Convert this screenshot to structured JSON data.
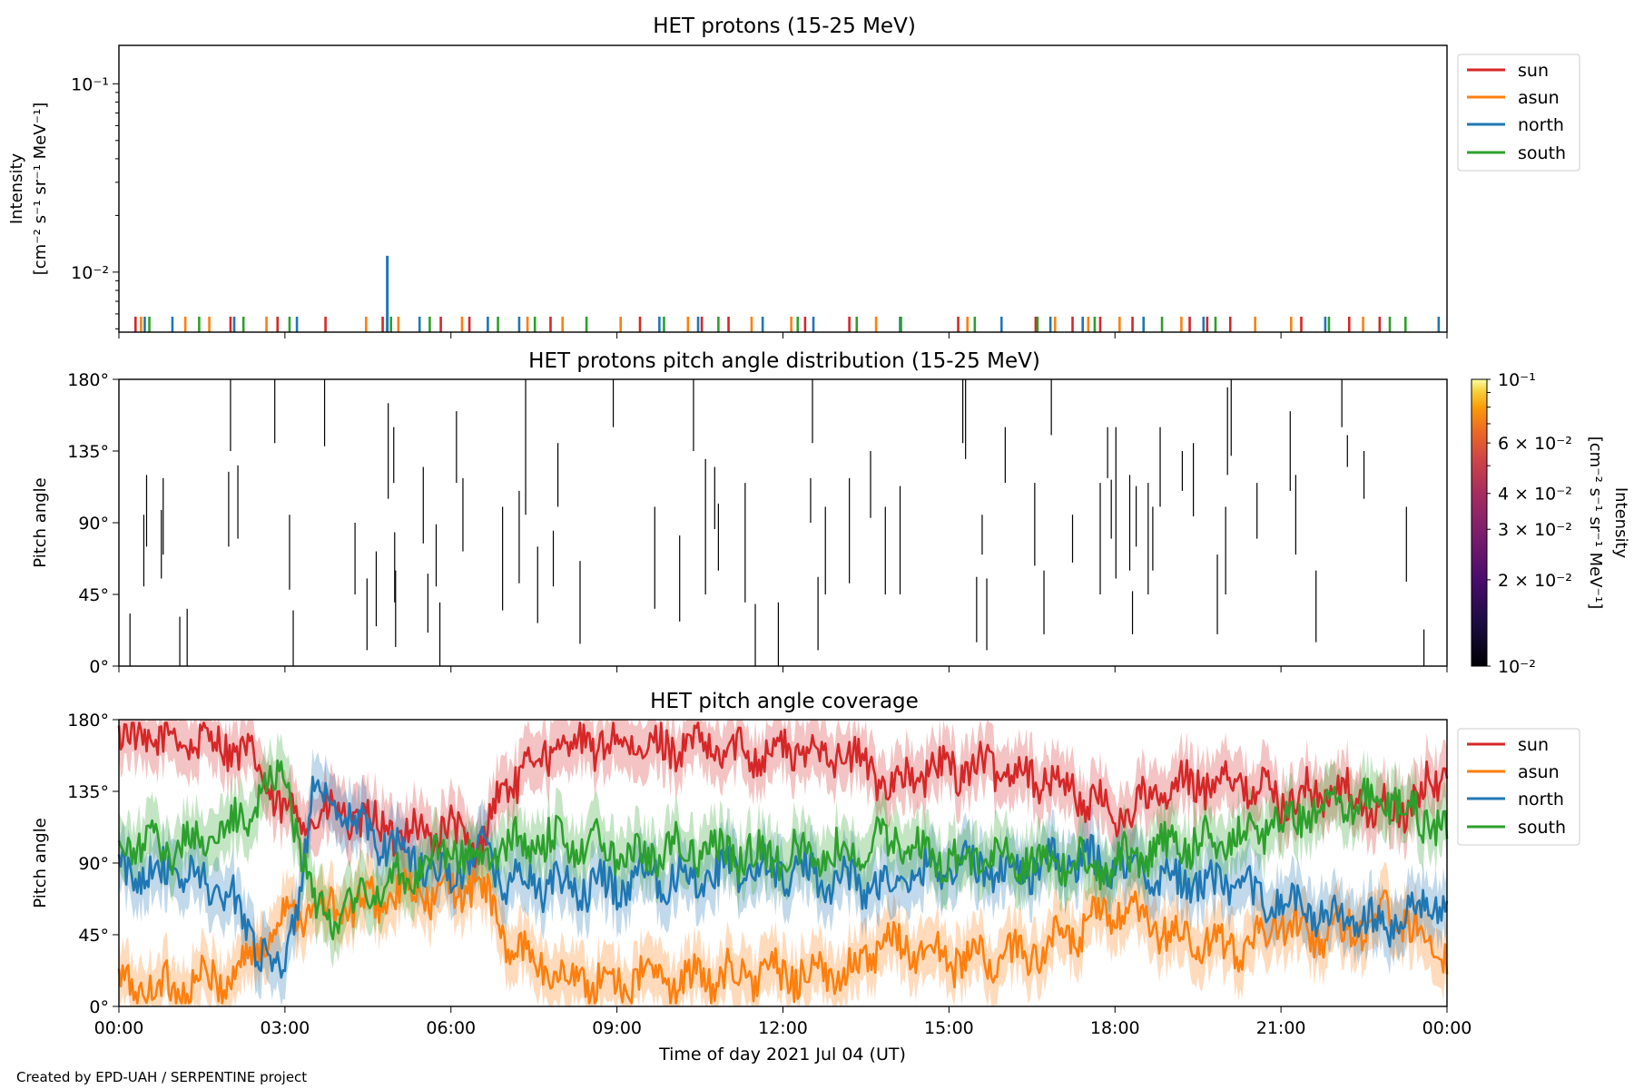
{
  "credit": "Created by EPD-UAH / SERPENTINE project",
  "colors": {
    "sun": "#d62728",
    "asun": "#ff7f0e",
    "north": "#1f77b4",
    "south": "#2ca02c",
    "marks": "#000000"
  },
  "chart_data": [
    {
      "type": "line",
      "title": "HET protons (15-25 MeV)",
      "ylabel_line1": "Intensity",
      "ylabel_line2": "[cm⁻² s⁻¹ sr⁻¹ MeV⁻¹]",
      "yscale": "log",
      "ylim": [
        0.0048,
        0.16
      ],
      "yticks": [
        {
          "value": 0.01,
          "label": "10⁻²"
        },
        {
          "value": 0.1,
          "label": "10⁻¹"
        }
      ],
      "legend": [
        "sun",
        "asun",
        "north",
        "south"
      ],
      "legend_position": "outside-right",
      "spike_level": 0.0058,
      "series": [
        {
          "name": "sun",
          "times": [
            "00:18",
            "02:01",
            "02:52",
            "03:44",
            "04:46",
            "05:49",
            "06:20",
            "07:48",
            "09:25",
            "10:32",
            "11:01",
            "12:24",
            "13:12",
            "15:10",
            "16:34",
            "17:14",
            "17:44",
            "18:19",
            "19:21",
            "19:40",
            "20:05",
            "21:22",
            "22:14",
            "22:47"
          ]
        },
        {
          "name": "asun",
          "times": [
            "00:24",
            "01:12",
            "01:38",
            "02:40",
            "04:28",
            "05:03",
            "06:12",
            "07:23",
            "08:01",
            "09:04",
            "10:17",
            "11:26",
            "12:09",
            "13:41",
            "15:20",
            "16:55",
            "17:31",
            "18:05",
            "19:12",
            "20:32",
            "21:11",
            "22:29"
          ]
        },
        {
          "name": "north",
          "times": [
            "00:28",
            "00:58",
            "02:05",
            "03:13",
            "04:51",
            "05:26",
            "06:40",
            "07:14",
            "09:46",
            "10:28",
            "11:38",
            "12:33",
            "14:07",
            "15:57",
            "16:50",
            "17:25",
            "18:31",
            "19:36",
            "21:48",
            "23:51"
          ]
        },
        {
          "name": "south",
          "times": [
            "00:33",
            "01:27",
            "02:15",
            "03:05",
            "04:55",
            "05:37",
            "06:51",
            "07:31",
            "08:27",
            "09:51",
            "10:50",
            "12:16",
            "13:20",
            "14:08",
            "15:28",
            "16:36",
            "17:38",
            "18:51",
            "19:49",
            "21:52",
            "22:58",
            "23:15"
          ]
        }
      ],
      "peak": {
        "series": "north",
        "time": "04:51",
        "value": 0.0122
      }
    },
    {
      "type": "scatter",
      "title": "HET protons pitch angle distribution (15-25 MeV)",
      "ylabel": "Pitch angle",
      "ylim": [
        0,
        180
      ],
      "yticks": [
        "0°",
        "45°",
        "90°",
        "135°",
        "180°"
      ],
      "colorbar": {
        "label_line1": "Intensity",
        "label_line2": "[cm⁻² s⁻¹ sr⁻¹ MeV⁻¹]",
        "scale": "log",
        "range": [
          0.01,
          0.1
        ],
        "ticks": [
          {
            "value": 0.01,
            "label": "10⁻²"
          },
          {
            "value": 0.02,
            "label": "2 × 10⁻²"
          },
          {
            "value": 0.03,
            "label": "3 × 10⁻²"
          },
          {
            "value": 0.04,
            "label": "4 × 10⁻²"
          },
          {
            "value": 0.06,
            "label": "6 × 10⁻²"
          },
          {
            "value": 0.1,
            "label": "10⁻¹"
          }
        ]
      },
      "segments": [
        [
          "00:12",
          0,
          33
        ],
        [
          "00:27",
          50,
          95
        ],
        [
          "00:30",
          75,
          120
        ],
        [
          "00:46",
          55,
          98
        ],
        [
          "00:48",
          70,
          118
        ],
        [
          "01:06",
          0,
          31
        ],
        [
          "01:14",
          0,
          36
        ],
        [
          "01:59",
          75,
          122
        ],
        [
          "02:01",
          135,
          180
        ],
        [
          "02:09",
          80,
          126
        ],
        [
          "02:49",
          140,
          180
        ],
        [
          "03:05",
          48,
          95
        ],
        [
          "03:09",
          0,
          35
        ],
        [
          "03:43",
          138,
          180
        ],
        [
          "04:16",
          45,
          90
        ],
        [
          "04:29",
          10,
          55
        ],
        [
          "04:39",
          25,
          72
        ],
        [
          "04:52",
          105,
          165
        ],
        [
          "04:58",
          115,
          150
        ],
        [
          "04:59",
          40,
          84
        ],
        [
          "05:00",
          12,
          60
        ],
        [
          "05:30",
          77,
          125
        ],
        [
          "05:35",
          21,
          58
        ],
        [
          "05:44",
          50,
          89
        ],
        [
          "05:48",
          0,
          40
        ],
        [
          "06:06",
          115,
          160
        ],
        [
          "06:13",
          72,
          118
        ],
        [
          "06:56",
          35,
          100
        ],
        [
          "07:14",
          52,
          110
        ],
        [
          "07:21",
          95,
          180
        ],
        [
          "07:34",
          27,
          75
        ],
        [
          "07:51",
          50,
          85
        ],
        [
          "07:56",
          100,
          140
        ],
        [
          "08:20",
          14,
          66
        ],
        [
          "08:56",
          150,
          180
        ],
        [
          "09:41",
          36,
          100
        ],
        [
          "10:08",
          28,
          82
        ],
        [
          "10:23",
          135,
          180
        ],
        [
          "10:36",
          45,
          130
        ],
        [
          "10:46",
          86,
          125
        ],
        [
          "10:50",
          60,
          102
        ],
        [
          "11:19",
          40,
          115
        ],
        [
          "11:30",
          0,
          39
        ],
        [
          "11:55",
          0,
          40
        ],
        [
          "12:30",
          90,
          118
        ],
        [
          "12:32",
          140,
          180
        ],
        [
          "12:38",
          10,
          56
        ],
        [
          "12:46",
          45,
          100
        ],
        [
          "13:12",
          52,
          118
        ],
        [
          "13:35",
          93,
          135
        ],
        [
          "13:51",
          45,
          100
        ],
        [
          "14:07",
          45,
          113
        ],
        [
          "15:15",
          140,
          180
        ],
        [
          "15:18",
          130,
          180
        ],
        [
          "15:30",
          15,
          56
        ],
        [
          "15:36",
          70,
          95
        ],
        [
          "15:41",
          10,
          55
        ],
        [
          "16:01",
          115,
          150
        ],
        [
          "16:33",
          63,
          115
        ],
        [
          "16:43",
          20,
          60
        ],
        [
          "16:51",
          145,
          180
        ],
        [
          "17:14",
          65,
          95
        ],
        [
          "17:44",
          45,
          115
        ],
        [
          "17:52",
          118,
          150
        ],
        [
          "17:56",
          80,
          117
        ],
        [
          "18:01",
          55,
          150
        ],
        [
          "18:16",
          60,
          120
        ],
        [
          "18:19",
          20,
          47
        ],
        [
          "18:23",
          75,
          113
        ],
        [
          "18:36",
          45,
          115
        ],
        [
          "18:41",
          60,
          100
        ],
        [
          "18:49",
          100,
          150
        ],
        [
          "19:13",
          110,
          135
        ],
        [
          "19:25",
          94,
          140
        ],
        [
          "19:51",
          20,
          70
        ],
        [
          "20:00",
          45,
          100
        ],
        [
          "20:02",
          120,
          175
        ],
        [
          "20:06",
          132,
          180
        ],
        [
          "20:34",
          80,
          115
        ],
        [
          "21:10",
          110,
          160
        ],
        [
          "21:16",
          70,
          120
        ],
        [
          "21:38",
          15,
          60
        ],
        [
          "22:06",
          150,
          180
        ],
        [
          "22:12",
          125,
          145
        ],
        [
          "22:30",
          105,
          135
        ],
        [
          "23:16",
          53,
          100
        ],
        [
          "23:35",
          0,
          23
        ]
      ]
    },
    {
      "type": "area",
      "title": "HET pitch angle coverage",
      "ylabel": "Pitch angle",
      "xlabel": "Time of day 2021 Jul 04 (UT)",
      "ylim": [
        0,
        180
      ],
      "yticks": [
        "0°",
        "45°",
        "90°",
        "135°",
        "180°"
      ],
      "xticks": [
        "00:00",
        "03:00",
        "06:00",
        "09:00",
        "12:00",
        "15:00",
        "18:00",
        "21:00",
        "00:00"
      ],
      "legend": [
        "sun",
        "asun",
        "north",
        "south"
      ],
      "legend_position": "outside-right",
      "band_halfwidth_deg": 18,
      "series": [
        {
          "name": "sun",
          "times": [
            "00:00",
            "01:00",
            "02:00",
            "02:30",
            "03:00",
            "03:30",
            "04:00",
            "05:00",
            "06:00",
            "06:30",
            "07:00",
            "08:00",
            "09:00",
            "09:30",
            "10:00",
            "11:00",
            "12:00",
            "13:00",
            "14:00",
            "15:00",
            "16:00",
            "17:00",
            "18:00",
            "19:00",
            "20:00",
            "21:00",
            "22:00",
            "23:00",
            "24:00"
          ],
          "values": [
            168,
            168,
            165,
            150,
            120,
            120,
            120,
            110,
            110,
            100,
            140,
            165,
            165,
            160,
            165,
            160,
            160,
            160,
            140,
            150,
            150,
            140,
            120,
            135,
            145,
            130,
            135,
            120,
            145
          ]
        },
        {
          "name": "asun",
          "times": [
            "00:00",
            "01:00",
            "02:00",
            "02:30",
            "03:00",
            "03:30",
            "04:00",
            "05:00",
            "06:00",
            "06:30",
            "07:00",
            "08:00",
            "09:00",
            "09:30",
            "10:00",
            "11:00",
            "12:00",
            "13:00",
            "14:00",
            "15:00",
            "16:00",
            "17:00",
            "18:00",
            "19:00",
            "20:00",
            "21:00",
            "22:00",
            "23:00",
            "24:00"
          ],
          "values": [
            12,
            12,
            18,
            35,
            60,
            60,
            60,
            70,
            70,
            80,
            40,
            18,
            15,
            20,
            15,
            20,
            20,
            20,
            40,
            30,
            30,
            40,
            60,
            45,
            35,
            50,
            45,
            60,
            35
          ]
        },
        {
          "name": "north",
          "times": [
            "00:00",
            "01:00",
            "02:00",
            "02:30",
            "03:00",
            "03:30",
            "04:00",
            "05:00",
            "06:00",
            "06:30",
            "07:00",
            "08:00",
            "09:00",
            "09:30",
            "10:00",
            "11:00",
            "12:00",
            "13:00",
            "14:00",
            "15:00",
            "16:00",
            "17:00",
            "18:00",
            "19:00",
            "20:00",
            "21:00",
            "22:00",
            "23:00",
            "24:00"
          ],
          "values": [
            85,
            85,
            70,
            40,
            20,
            130,
            120,
            100,
            80,
            100,
            80,
            75,
            75,
            85,
            80,
            85,
            85,
            80,
            75,
            90,
            85,
            90,
            90,
            80,
            75,
            65,
            55,
            50,
            70
          ]
        },
        {
          "name": "south",
          "times": [
            "00:00",
            "01:00",
            "02:00",
            "02:30",
            "03:00",
            "03:30",
            "04:00",
            "05:00",
            "06:00",
            "06:30",
            "07:00",
            "08:00",
            "09:00",
            "09:30",
            "10:00",
            "11:00",
            "12:00",
            "13:00",
            "14:00",
            "15:00",
            "16:00",
            "17:00",
            "18:00",
            "19:00",
            "20:00",
            "21:00",
            "22:00",
            "23:00",
            "24:00"
          ],
          "values": [
            100,
            100,
            110,
            130,
            150,
            60,
            60,
            80,
            100,
            90,
            100,
            105,
            100,
            95,
            100,
            95,
            95,
            95,
            105,
            90,
            95,
            90,
            90,
            100,
            105,
            115,
            125,
            130,
            110
          ]
        }
      ]
    }
  ]
}
